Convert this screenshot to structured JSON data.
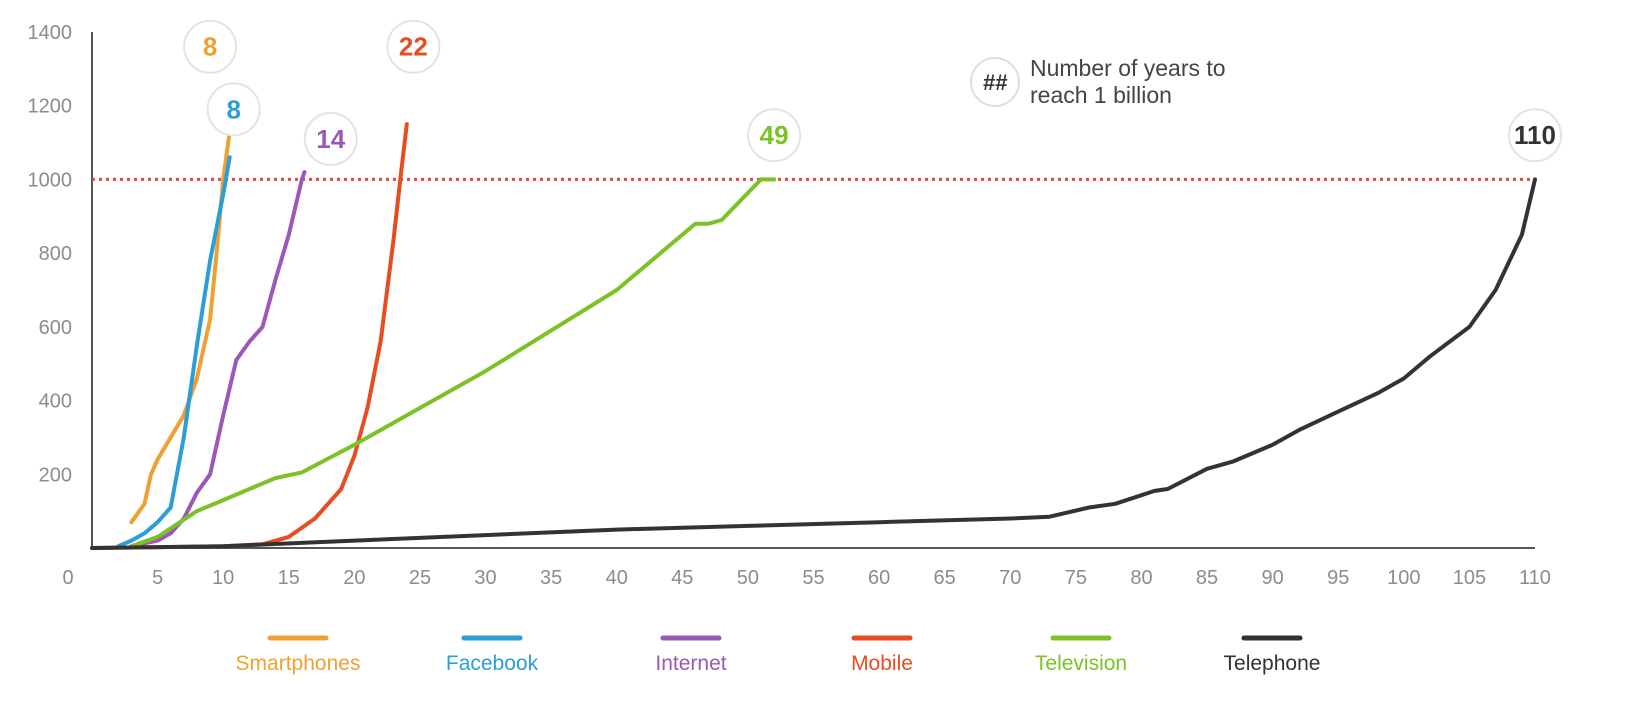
{
  "chart_data": {
    "type": "line",
    "title": "",
    "xlabel": "",
    "ylabel": "",
    "xlim": [
      0,
      110
    ],
    "ylim": [
      0,
      1400
    ],
    "x_ticks": [
      0,
      5,
      10,
      15,
      20,
      25,
      30,
      35,
      40,
      45,
      50,
      55,
      60,
      65,
      70,
      75,
      80,
      85,
      90,
      95,
      100,
      105,
      110
    ],
    "y_ticks": [
      200,
      400,
      600,
      800,
      1000,
      1200,
      1400
    ],
    "grid": false,
    "legend_position": "bottom",
    "reference_line": {
      "y": 1000,
      "color": "#e8453c",
      "style": "dotted"
    },
    "annotation": {
      "symbol": "##",
      "text_line1": "Number of years to",
      "text_line2": "reach 1 billion"
    },
    "series": [
      {
        "name": "Smartphones",
        "color": "#f0a030",
        "years_label": "8",
        "points": [
          [
            3,
            70
          ],
          [
            4,
            120
          ],
          [
            4.5,
            200
          ],
          [
            5,
            240
          ],
          [
            6,
            300
          ],
          [
            7,
            360
          ],
          [
            8,
            460
          ],
          [
            9,
            620
          ],
          [
            9.5,
            800
          ],
          [
            10,
            1000
          ],
          [
            10.5,
            1130
          ]
        ]
      },
      {
        "name": "Facebook",
        "color": "#2a9fd6",
        "years_label": "8",
        "points": [
          [
            2,
            5
          ],
          [
            3,
            20
          ],
          [
            4,
            40
          ],
          [
            5,
            70
          ],
          [
            6,
            110
          ],
          [
            7,
            300
          ],
          [
            8,
            550
          ],
          [
            9,
            780
          ],
          [
            10,
            960
          ],
          [
            10.5,
            1060
          ]
        ]
      },
      {
        "name": "Internet",
        "color": "#9b59b6",
        "years_label": "14",
        "points": [
          [
            3,
            5
          ],
          [
            5,
            20
          ],
          [
            6,
            40
          ],
          [
            7,
            80
          ],
          [
            8,
            150
          ],
          [
            9,
            200
          ],
          [
            10,
            360
          ],
          [
            11,
            510
          ],
          [
            12,
            560
          ],
          [
            13,
            600
          ],
          [
            14,
            730
          ],
          [
            15,
            850
          ],
          [
            16,
            1000
          ],
          [
            16.2,
            1020
          ]
        ]
      },
      {
        "name": "Mobile",
        "color": "#e84c20",
        "years_label": "22",
        "points": [
          [
            0,
            0
          ],
          [
            5,
            2
          ],
          [
            10,
            5
          ],
          [
            13,
            10
          ],
          [
            15,
            30
          ],
          [
            17,
            80
          ],
          [
            19,
            160
          ],
          [
            20,
            250
          ],
          [
            21,
            380
          ],
          [
            22,
            560
          ],
          [
            23,
            840
          ],
          [
            23.5,
            1000
          ],
          [
            24,
            1150
          ]
        ]
      },
      {
        "name": "Television",
        "color": "#7cc226",
        "years_label": "49",
        "points": [
          [
            3,
            5
          ],
          [
            5,
            30
          ],
          [
            8,
            100
          ],
          [
            10,
            130
          ],
          [
            12,
            160
          ],
          [
            14,
            190
          ],
          [
            16,
            205
          ],
          [
            20,
            280
          ],
          [
            30,
            480
          ],
          [
            40,
            700
          ],
          [
            46,
            880
          ],
          [
            47,
            880
          ],
          [
            48,
            890
          ],
          [
            51,
            1000
          ],
          [
            52,
            1000
          ]
        ]
      },
      {
        "name": "Telephone",
        "color": "#333333",
        "years_label": "110",
        "points": [
          [
            0,
            0
          ],
          [
            10,
            5
          ],
          [
            20,
            20
          ],
          [
            30,
            35
          ],
          [
            40,
            50
          ],
          [
            50,
            60
          ],
          [
            60,
            70
          ],
          [
            70,
            80
          ],
          [
            73,
            85
          ],
          [
            76,
            110
          ],
          [
            78,
            120
          ],
          [
            81,
            155
          ],
          [
            82,
            160
          ],
          [
            85,
            215
          ],
          [
            87,
            235
          ],
          [
            90,
            280
          ],
          [
            92,
            320
          ],
          [
            95,
            370
          ],
          [
            98,
            420
          ],
          [
            100,
            460
          ],
          [
            102,
            520
          ],
          [
            105,
            600
          ],
          [
            107,
            700
          ],
          [
            109,
            850
          ],
          [
            110,
            1000
          ]
        ]
      }
    ]
  }
}
